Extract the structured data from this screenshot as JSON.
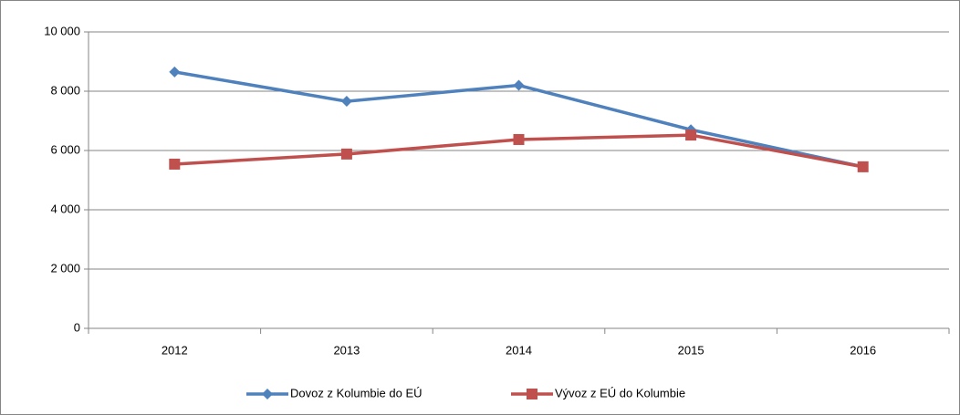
{
  "chart_data": {
    "type": "line",
    "categories": [
      "2012",
      "2013",
      "2014",
      "2015",
      "2016"
    ],
    "series": [
      {
        "name": "Dovoz z Kolumbie do EÚ",
        "color": "#4f81bd",
        "marker": "diamond",
        "values": [
          8650,
          7660,
          8200,
          6700,
          5450
        ]
      },
      {
        "name": "Vývoz z EÚ do Kolumbie",
        "color": "#c0504d",
        "marker": "square",
        "values": [
          5540,
          5880,
          6370,
          6520,
          5450
        ]
      }
    ],
    "ylim": [
      0,
      10000
    ],
    "yticks": [
      0,
      {
        "value": 2000,
        "label": "2 000"
      },
      {
        "value": 4000,
        "label": "4 000"
      },
      {
        "value": 6000,
        "label": "6 000"
      },
      {
        "value": 8000,
        "label": "8 000"
      },
      {
        "value": 10000,
        "label": "10 000"
      }
    ],
    "grid": true,
    "legend": "bottom"
  }
}
